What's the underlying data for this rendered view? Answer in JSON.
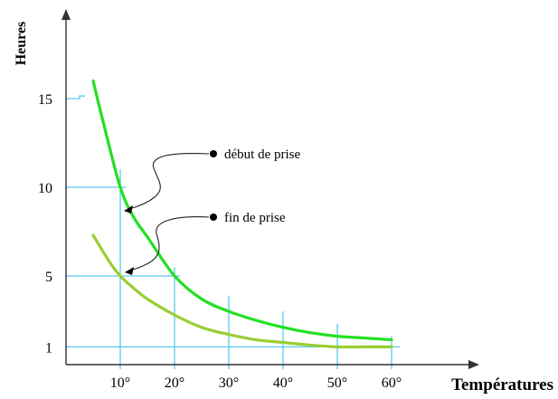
{
  "chart_data": {
    "type": "line",
    "title": "",
    "xlabel": "Températures",
    "ylabel": "Heures",
    "x_ticks": [
      {
        "value": 10,
        "label": "10°"
      },
      {
        "value": 20,
        "label": "20°"
      },
      {
        "value": 30,
        "label": "30°"
      },
      {
        "value": 40,
        "label": "40°"
      },
      {
        "value": 50,
        "label": "50°"
      },
      {
        "value": 60,
        "label": "60°"
      }
    ],
    "y_ticks": [
      {
        "value": 1,
        "label": "1"
      },
      {
        "value": 5,
        "label": "5"
      },
      {
        "value": 10,
        "label": "10"
      },
      {
        "value": 15,
        "label": "15"
      }
    ],
    "series": [
      {
        "name": "début de prise",
        "color": "#22e022",
        "x": [
          5,
          7,
          10,
          12.5,
          15,
          20,
          25,
          30,
          35,
          40,
          45,
          50,
          55,
          60
        ],
        "y": [
          16,
          13.5,
          10,
          8.3,
          7.2,
          5.0,
          3.7,
          3.0,
          2.5,
          2.1,
          1.8,
          1.6,
          1.5,
          1.4
        ]
      },
      {
        "name": "fin de prise",
        "color": "#9acd32",
        "x": [
          5,
          8,
          10,
          12.5,
          15,
          20,
          25,
          30,
          35,
          40,
          45,
          50,
          55,
          60
        ],
        "y": [
          7.3,
          5.8,
          5.0,
          4.3,
          3.7,
          2.8,
          2.1,
          1.7,
          1.4,
          1.25,
          1.1,
          1.0,
          1.0,
          1.0
        ]
      }
    ],
    "annotations": [
      {
        "text": "début de prise",
        "series": 0
      },
      {
        "text": "fin de prise",
        "series": 1
      }
    ],
    "xlim": [
      0,
      75
    ],
    "ylim": [
      0,
      19
    ],
    "grid_color": "#5bc8f0",
    "axis_color": "#333333"
  }
}
